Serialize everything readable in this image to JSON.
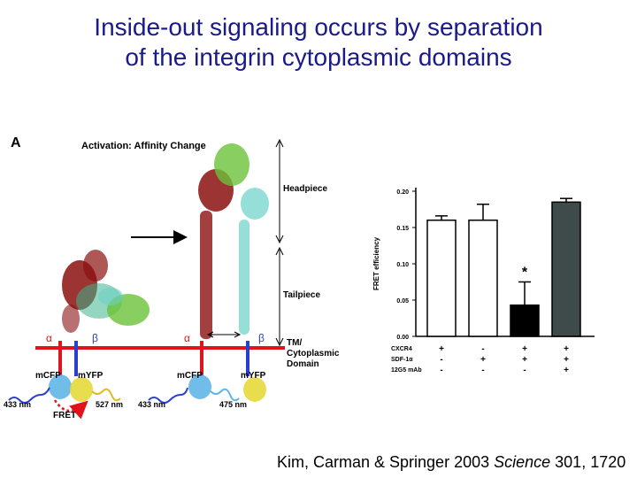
{
  "slide": {
    "title_line1": "Inside-out signaling occurs by separation",
    "title_line2": "of the integrin cytoplasmic domains",
    "citation_authors": "Kim, Carman & Springer 2003 ",
    "citation_journal": "Science",
    "citation_ref": " 301, 1720"
  },
  "figure": {
    "panel_label": "A",
    "activation_label": "Activation: Affinity Change",
    "headpiece_label": "Headpiece",
    "tailpiece_label": "Tailpiece",
    "tm_label_1": "TM/",
    "tm_label_2": "Cytoplasmic",
    "tm_label_3": "Domain",
    "alpha": "α",
    "beta": "β",
    "mcfp": "mCFP",
    "myfp": "mYFP",
    "fret": "FRET",
    "wl_433": "433 nm",
    "wl_527": "527 nm",
    "wl_475": "475 nm",
    "colors": {
      "membrane": "#e0141a",
      "alpha_tail": "#e0141a",
      "beta_tail": "#2a3fd0",
      "alpha_domain": "#8b1010",
      "beta_domain": "#3cb58a",
      "leg_domain": "#6ad0c8",
      "head_domain": "#6cc23a"
    }
  },
  "chart_data": {
    "type": "bar",
    "ylabel": "FRET efficiency",
    "ylim": [
      0.0,
      0.2
    ],
    "yticks": [
      "0.00",
      "0.05",
      "0.10",
      "0.15",
      "0.20"
    ],
    "bars": [
      {
        "value": 0.16,
        "error": 0.006,
        "fill": "#ffffff"
      },
      {
        "value": 0.16,
        "error": 0.022,
        "fill": "#ffffff"
      },
      {
        "value": 0.043,
        "error": 0.032,
        "fill": "#000000",
        "annotation": "*"
      },
      {
        "value": 0.185,
        "error": 0.005,
        "fill": "#3f4a4a"
      }
    ],
    "conditions": [
      {
        "label": "CXCR4",
        "signs": [
          "+",
          "-",
          "+",
          "+"
        ]
      },
      {
        "label": "SDF-1α",
        "signs": [
          "-",
          "+",
          "+",
          "+"
        ]
      },
      {
        "label": "12G5 mAb",
        "signs": [
          "-",
          "-",
          "-",
          "+"
        ]
      }
    ]
  }
}
